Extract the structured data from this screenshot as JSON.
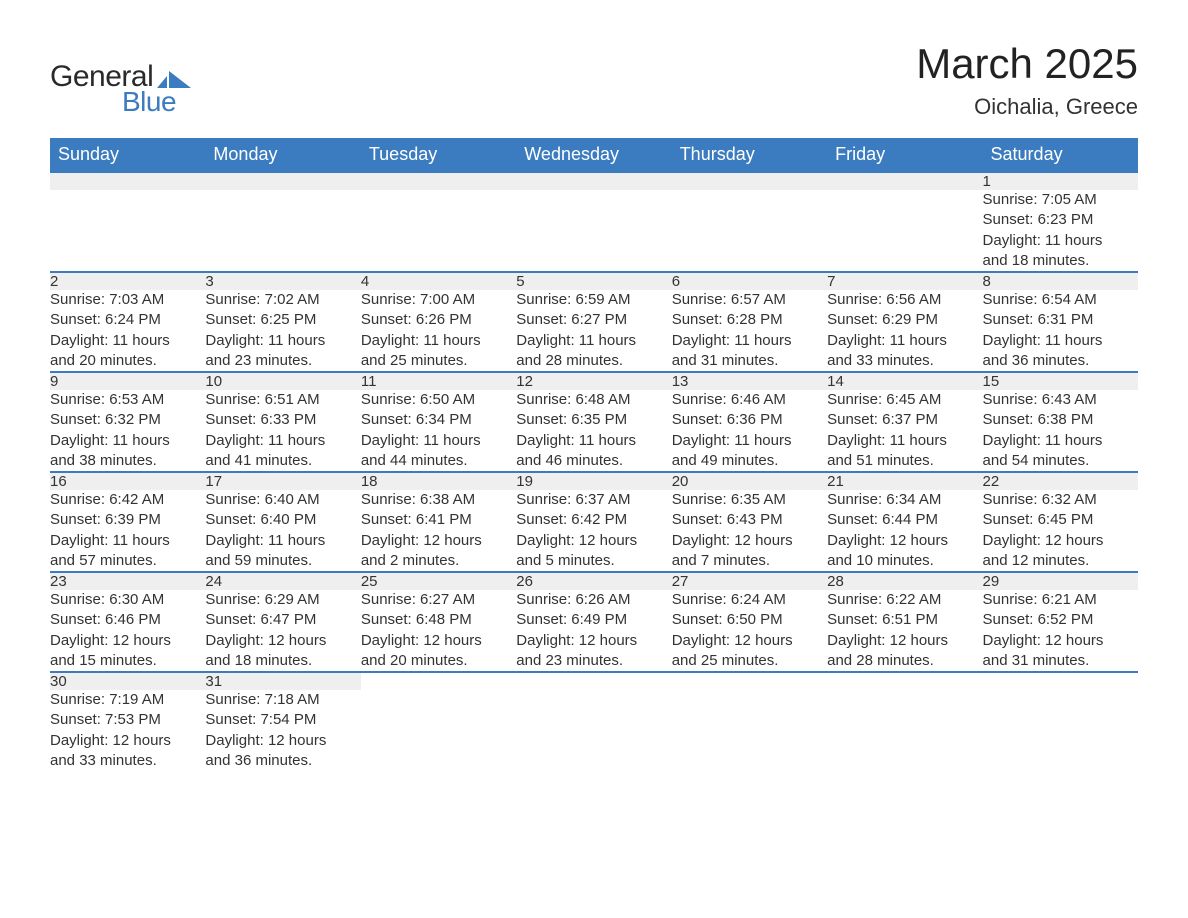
{
  "logo": {
    "text1": "General",
    "text2": "Blue",
    "shape_color": "#3b7bbf"
  },
  "title": "March 2025",
  "location": "Oichalia, Greece",
  "header_bg": "#3b7bbf",
  "header_fg": "#ffffff",
  "row_divider_color": "#3b7bbf",
  "daynum_bg": "#efefef",
  "text_color": "#333333",
  "weekdays": [
    "Sunday",
    "Monday",
    "Tuesday",
    "Wednesday",
    "Thursday",
    "Friday",
    "Saturday"
  ],
  "weeks": [
    [
      null,
      null,
      null,
      null,
      null,
      null,
      {
        "n": "1",
        "sunrise": "7:05 AM",
        "sunset": "6:23 PM",
        "dl1": "11 hours",
        "dl2": "and 18 minutes."
      }
    ],
    [
      {
        "n": "2",
        "sunrise": "7:03 AM",
        "sunset": "6:24 PM",
        "dl1": "11 hours",
        "dl2": "and 20 minutes."
      },
      {
        "n": "3",
        "sunrise": "7:02 AM",
        "sunset": "6:25 PM",
        "dl1": "11 hours",
        "dl2": "and 23 minutes."
      },
      {
        "n": "4",
        "sunrise": "7:00 AM",
        "sunset": "6:26 PM",
        "dl1": "11 hours",
        "dl2": "and 25 minutes."
      },
      {
        "n": "5",
        "sunrise": "6:59 AM",
        "sunset": "6:27 PM",
        "dl1": "11 hours",
        "dl2": "and 28 minutes."
      },
      {
        "n": "6",
        "sunrise": "6:57 AM",
        "sunset": "6:28 PM",
        "dl1": "11 hours",
        "dl2": "and 31 minutes."
      },
      {
        "n": "7",
        "sunrise": "6:56 AM",
        "sunset": "6:29 PM",
        "dl1": "11 hours",
        "dl2": "and 33 minutes."
      },
      {
        "n": "8",
        "sunrise": "6:54 AM",
        "sunset": "6:31 PM",
        "dl1": "11 hours",
        "dl2": "and 36 minutes."
      }
    ],
    [
      {
        "n": "9",
        "sunrise": "6:53 AM",
        "sunset": "6:32 PM",
        "dl1": "11 hours",
        "dl2": "and 38 minutes."
      },
      {
        "n": "10",
        "sunrise": "6:51 AM",
        "sunset": "6:33 PM",
        "dl1": "11 hours",
        "dl2": "and 41 minutes."
      },
      {
        "n": "11",
        "sunrise": "6:50 AM",
        "sunset": "6:34 PM",
        "dl1": "11 hours",
        "dl2": "and 44 minutes."
      },
      {
        "n": "12",
        "sunrise": "6:48 AM",
        "sunset": "6:35 PM",
        "dl1": "11 hours",
        "dl2": "and 46 minutes."
      },
      {
        "n": "13",
        "sunrise": "6:46 AM",
        "sunset": "6:36 PM",
        "dl1": "11 hours",
        "dl2": "and 49 minutes."
      },
      {
        "n": "14",
        "sunrise": "6:45 AM",
        "sunset": "6:37 PM",
        "dl1": "11 hours",
        "dl2": "and 51 minutes."
      },
      {
        "n": "15",
        "sunrise": "6:43 AM",
        "sunset": "6:38 PM",
        "dl1": "11 hours",
        "dl2": "and 54 minutes."
      }
    ],
    [
      {
        "n": "16",
        "sunrise": "6:42 AM",
        "sunset": "6:39 PM",
        "dl1": "11 hours",
        "dl2": "and 57 minutes."
      },
      {
        "n": "17",
        "sunrise": "6:40 AM",
        "sunset": "6:40 PM",
        "dl1": "11 hours",
        "dl2": "and 59 minutes."
      },
      {
        "n": "18",
        "sunrise": "6:38 AM",
        "sunset": "6:41 PM",
        "dl1": "12 hours",
        "dl2": "and 2 minutes."
      },
      {
        "n": "19",
        "sunrise": "6:37 AM",
        "sunset": "6:42 PM",
        "dl1": "12 hours",
        "dl2": "and 5 minutes."
      },
      {
        "n": "20",
        "sunrise": "6:35 AM",
        "sunset": "6:43 PM",
        "dl1": "12 hours",
        "dl2": "and 7 minutes."
      },
      {
        "n": "21",
        "sunrise": "6:34 AM",
        "sunset": "6:44 PM",
        "dl1": "12 hours",
        "dl2": "and 10 minutes."
      },
      {
        "n": "22",
        "sunrise": "6:32 AM",
        "sunset": "6:45 PM",
        "dl1": "12 hours",
        "dl2": "and 12 minutes."
      }
    ],
    [
      {
        "n": "23",
        "sunrise": "6:30 AM",
        "sunset": "6:46 PM",
        "dl1": "12 hours",
        "dl2": "and 15 minutes."
      },
      {
        "n": "24",
        "sunrise": "6:29 AM",
        "sunset": "6:47 PM",
        "dl1": "12 hours",
        "dl2": "and 18 minutes."
      },
      {
        "n": "25",
        "sunrise": "6:27 AM",
        "sunset": "6:48 PM",
        "dl1": "12 hours",
        "dl2": "and 20 minutes."
      },
      {
        "n": "26",
        "sunrise": "6:26 AM",
        "sunset": "6:49 PM",
        "dl1": "12 hours",
        "dl2": "and 23 minutes."
      },
      {
        "n": "27",
        "sunrise": "6:24 AM",
        "sunset": "6:50 PM",
        "dl1": "12 hours",
        "dl2": "and 25 minutes."
      },
      {
        "n": "28",
        "sunrise": "6:22 AM",
        "sunset": "6:51 PM",
        "dl1": "12 hours",
        "dl2": "and 28 minutes."
      },
      {
        "n": "29",
        "sunrise": "6:21 AM",
        "sunset": "6:52 PM",
        "dl1": "12 hours",
        "dl2": "and 31 minutes."
      }
    ],
    [
      {
        "n": "30",
        "sunrise": "7:19 AM",
        "sunset": "7:53 PM",
        "dl1": "12 hours",
        "dl2": "and 33 minutes."
      },
      {
        "n": "31",
        "sunrise": "7:18 AM",
        "sunset": "7:54 PM",
        "dl1": "12 hours",
        "dl2": "and 36 minutes."
      },
      null,
      null,
      null,
      null,
      null
    ]
  ],
  "labels": {
    "sunrise": "Sunrise: ",
    "sunset": "Sunset: ",
    "daylight": "Daylight: "
  }
}
